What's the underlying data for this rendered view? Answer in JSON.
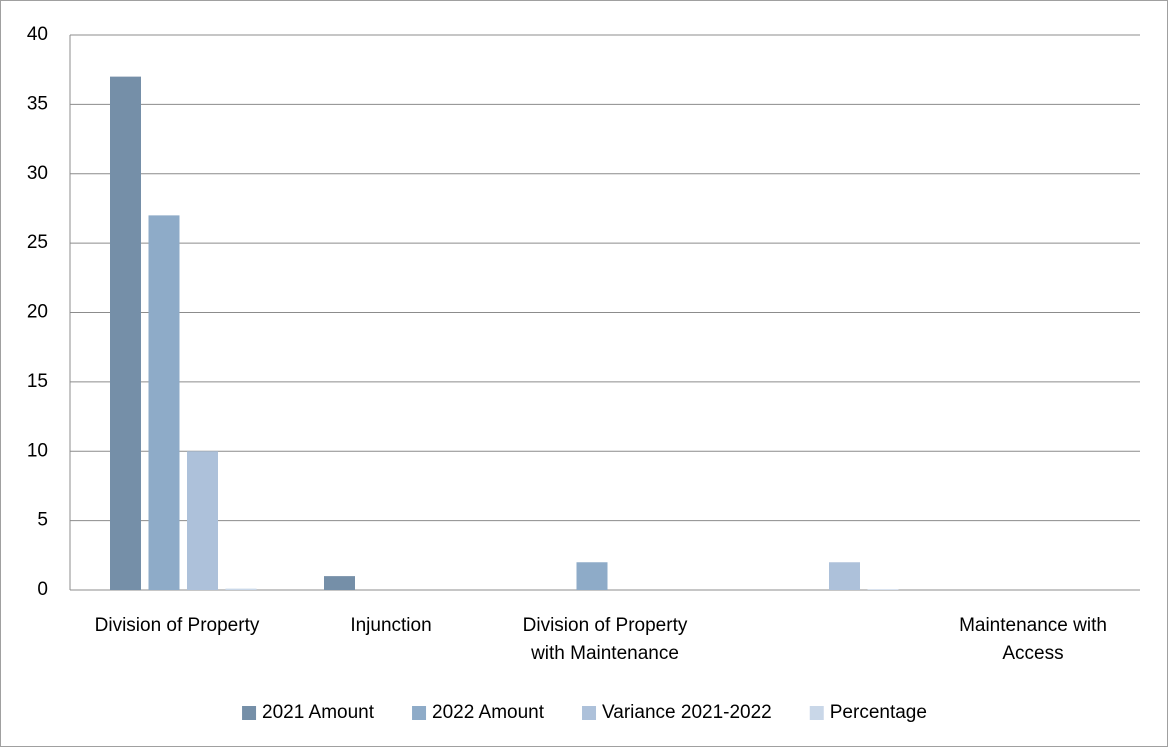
{
  "chart_data": {
    "type": "bar",
    "categories": [
      "Division of Property",
      "Injunction",
      "Division of Property with Maintenance",
      null,
      "Maintenance with Access"
    ],
    "series": [
      {
        "name": "2021 Amount",
        "color": "#758fa8",
        "values": [
          37,
          1,
          0,
          0,
          0
        ]
      },
      {
        "name": "2022 Amount",
        "color": "#8eabc8",
        "values": [
          27,
          0,
          2,
          0,
          0
        ]
      },
      {
        "name": "Variance 2021-2022",
        "color": "#adc1da",
        "values": [
          10,
          0,
          0,
          2,
          0
        ]
      },
      {
        "name": "Percentage",
        "color": "#c9d7e8",
        "values": [
          0.1,
          0,
          0,
          0.05,
          0
        ]
      }
    ],
    "ylim": [
      0,
      40
    ],
    "yticks": [
      0,
      5,
      10,
      15,
      20,
      25,
      30,
      35,
      40
    ],
    "grid": true,
    "legend": "bottom"
  }
}
